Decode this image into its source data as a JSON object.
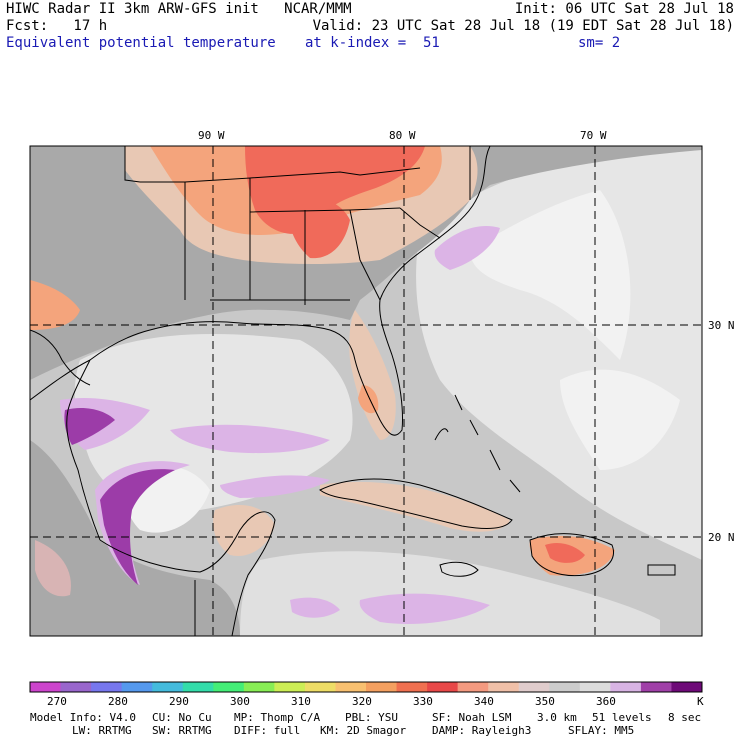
{
  "header": {
    "line1_left": "HIWC Radar II 3km ARW-GFS init   NCAR/MMM",
    "line1_right": "Init: 06 UTC Sat 28 Jul 18",
    "line2_left": "Fcst:   17 h",
    "line2_right": "Valid: 23 UTC Sat 28 Jul 18 (19 EDT Sat 28 Jul 18)",
    "field": "Equivalent potential temperature",
    "level": "at k-index =  51",
    "smooth": "sm= 2"
  },
  "map": {
    "lon_labels": [
      "90 W",
      "80 W",
      "70 W"
    ],
    "lat_labels": [
      "30 N",
      "20 N"
    ],
    "colors": {
      "background": "#c8c8c8",
      "land_gray": "#a9a9a9",
      "light_gray": "#dcdcdc",
      "white": "#f2f2f2",
      "tan": "#e8c8b4",
      "salmon": "#f4a47c",
      "red": "#f06a5a",
      "lavender": "#dcb4e6",
      "purple": "#9c3ca8"
    }
  },
  "colorbar": {
    "colors": [
      "#cc44cc",
      "#9966cc",
      "#7777ee",
      "#5599ee",
      "#44bbdd",
      "#33ddaa",
      "#44ee77",
      "#88ee55",
      "#ccee55",
      "#eedd66",
      "#f8c070",
      "#f4a060",
      "#f07050",
      "#e84848",
      "#f49a80",
      "#f0c0a8",
      "#e0cccc",
      "#cccccc",
      "#dddddd",
      "#d8b4e4",
      "#a040a8",
      "#6e0a78"
    ],
    "tick_labels": [
      "270",
      "280",
      "290",
      "300",
      "310",
      "320",
      "330",
      "340",
      "350",
      "360"
    ],
    "unit": "K"
  },
  "footer": {
    "row1": [
      "Model Info: V4.0",
      "CU: No Cu",
      "MP: Thomp C/A",
      "PBL: YSU",
      "SF: Noah LSM",
      "3.0 km",
      "51 levels",
      "8 sec"
    ],
    "row2": [
      "LW: RRTMG",
      "SW: RRTMG",
      "DIFF: full",
      "KM: 2D Smagor",
      "DAMP: Rayleigh3",
      "SFLAY: MM5"
    ]
  }
}
